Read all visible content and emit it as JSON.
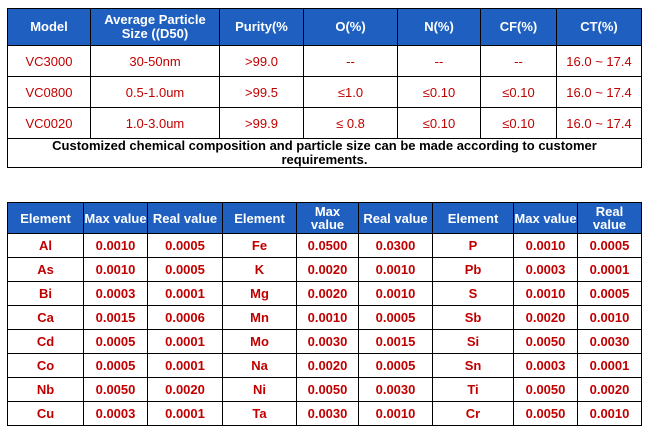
{
  "spec": {
    "headers": [
      "Model",
      "Average Particle Size ((D50)",
      "Purity(%",
      "O(%)",
      "N(%)",
      "CF(%)",
      "CT(%)"
    ],
    "rows": [
      [
        "VC3000",
        "30-50nm",
        ">99.0",
        "--",
        "--",
        "--",
        "16.0 ~ 17.4"
      ],
      [
        "VC0800",
        "0.5-1.0um",
        ">99.5",
        "≤1.0",
        "≤0.10",
        "≤0.10",
        "16.0 ~ 17.4"
      ],
      [
        "VC0020",
        "1.0-3.0um",
        ">99.9",
        "≤ 0.8",
        "≤0.10",
        "≤0.10",
        "16.0 ~ 17.4"
      ]
    ],
    "note": "Customized chemical composition and particle size can be made according to customer requirements."
  },
  "impurities": {
    "headers": [
      "Element",
      "Max value",
      "Real value",
      "Element",
      "Max value",
      "Real value",
      "Element",
      "Max value",
      "Real value"
    ],
    "rows": [
      [
        "Al",
        "0.0010",
        "0.0005",
        "Fe",
        "0.0500",
        "0.0300",
        "P",
        "0.0010",
        "0.0005"
      ],
      [
        "As",
        "0.0010",
        "0.0005",
        "K",
        "0.0020",
        "0.0010",
        "Pb",
        "0.0003",
        "0.0001"
      ],
      [
        "Bi",
        "0.0003",
        "0.0001",
        "Mg",
        "0.0020",
        "0.0010",
        "S",
        "0.0010",
        "0.0005"
      ],
      [
        "Ca",
        "0.0015",
        "0.0006",
        "Mn",
        "0.0010",
        "0.0005",
        "Sb",
        "0.0020",
        "0.0010"
      ],
      [
        "Cd",
        "0.0005",
        "0.0001",
        "Mo",
        "0.0030",
        "0.0015",
        "Si",
        "0.0050",
        "0.0030"
      ],
      [
        "Co",
        "0.0005",
        "0.0001",
        "Na",
        "0.0020",
        "0.0005",
        "Sn",
        "0.0003",
        "0.0001"
      ],
      [
        "Nb",
        "0.0050",
        "0.0020",
        "Ni",
        "0.0050",
        "0.0030",
        "Ti",
        "0.0050",
        "0.0020"
      ],
      [
        "Cu",
        "0.0003",
        "0.0001",
        "Ta",
        "0.0030",
        "0.0010",
        "Cr",
        "0.0050",
        "0.0010"
      ]
    ]
  },
  "colors": {
    "header_bg": "#1f5fbf",
    "header_text": "#ffffff",
    "value_text": "#c00000",
    "note_text": "#000000"
  }
}
